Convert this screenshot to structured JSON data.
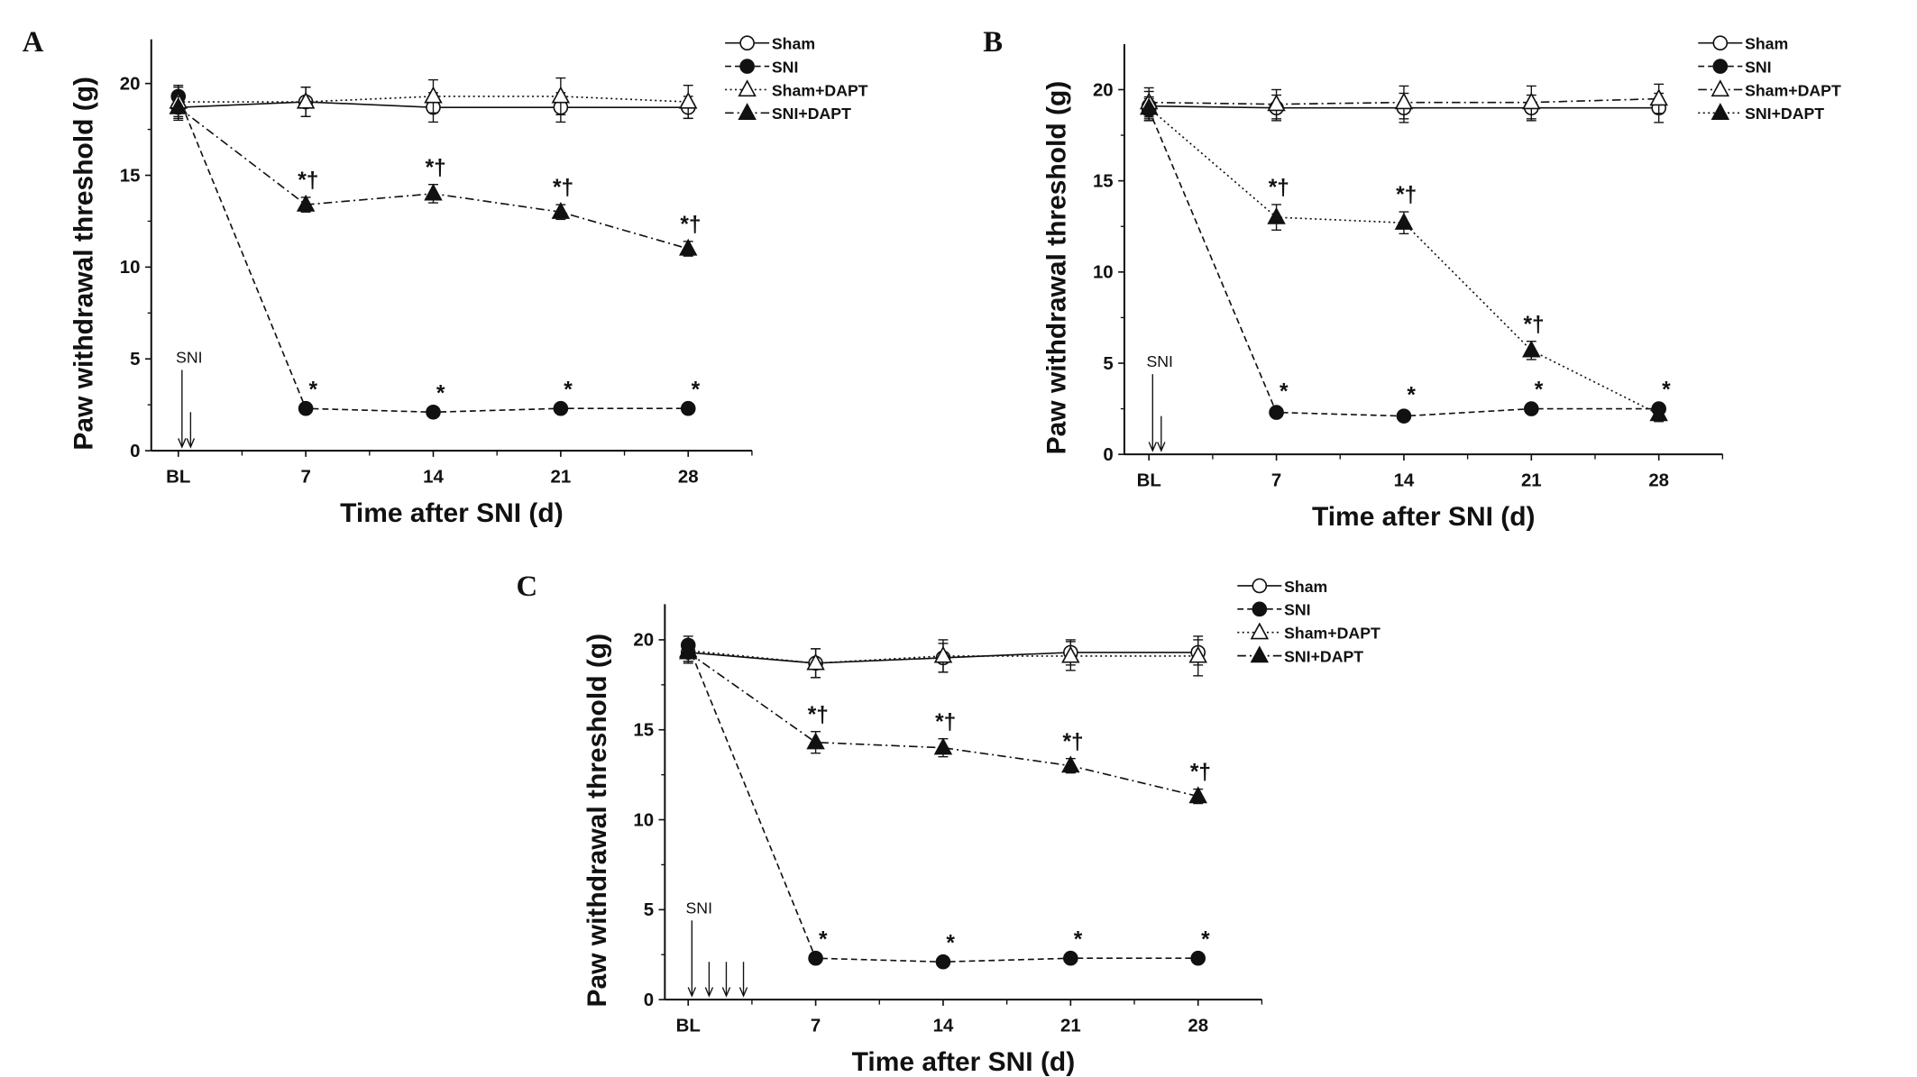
{
  "chart_data": [
    {
      "panel": "A",
      "type": "line",
      "title": "",
      "xlabel": "Time after SNI (d)",
      "ylabel": "Paw withdrawal threshold (g)",
      "categories": [
        "BL",
        "7",
        "14",
        "21",
        "28"
      ],
      "yticks": [
        0,
        5,
        10,
        15,
        20
      ],
      "ylim": [
        0,
        22.5
      ],
      "grid": false,
      "legend": "top-right",
      "arrow_label": "SNI",
      "arrow_count": 2,
      "series": [
        {
          "name": "Sham",
          "marker": "circle-open",
          "line": "solid",
          "values": [
            18.7,
            19.0,
            18.7,
            18.7,
            18.7
          ],
          "errors": [
            0.7,
            0.8,
            0.8,
            0.8,
            0.6
          ],
          "annotations": [
            "",
            "",
            "",
            "",
            ""
          ]
        },
        {
          "name": "SNI",
          "marker": "circle-filled",
          "line": "dashed",
          "values": [
            19.3,
            2.3,
            2.1,
            2.3,
            2.3
          ],
          "errors": [
            0.6,
            0.1,
            0.1,
            0.1,
            0.1
          ],
          "annotations": [
            "",
            "*",
            "*",
            "*",
            "*"
          ]
        },
        {
          "name": "Sham+DAPT",
          "marker": "triangle-open",
          "line": "dotted",
          "values": [
            19.0,
            19.0,
            19.3,
            19.3,
            19.0
          ],
          "errors": [
            0.8,
            0.8,
            0.9,
            1.0,
            0.9
          ],
          "annotations": [
            "",
            "",
            "",
            "",
            ""
          ]
        },
        {
          "name": "SNI+DAPT",
          "marker": "triangle-filled",
          "line": "dashdot",
          "values": [
            18.7,
            13.4,
            14.0,
            13.0,
            11.0
          ],
          "errors": [
            0.6,
            0.4,
            0.5,
            0.4,
            0.4
          ],
          "annotations": [
            "",
            "*†",
            "*†",
            "*†",
            "*†"
          ]
        }
      ]
    },
    {
      "panel": "B",
      "type": "line",
      "title": "",
      "xlabel": "Time after SNI (d)",
      "ylabel": "Paw withdrawal threshold (g)",
      "categories": [
        "BL",
        "7",
        "14",
        "21",
        "28"
      ],
      "yticks": [
        0,
        5,
        10,
        15,
        20
      ],
      "ylim": [
        0,
        22.5
      ],
      "grid": false,
      "legend": "top-right",
      "arrow_label": "SNI",
      "arrow_count": 2,
      "series": [
        {
          "name": "Sham",
          "marker": "circle-open",
          "line": "solid",
          "values": [
            19.1,
            19.0,
            19.0,
            19.0,
            19.0
          ],
          "errors": [
            0.8,
            0.7,
            0.8,
            0.7,
            0.8
          ],
          "annotations": [
            "",
            "",
            "",
            "",
            ""
          ]
        },
        {
          "name": "SNI",
          "marker": "circle-filled",
          "line": "dashed",
          "values": [
            18.9,
            2.3,
            2.1,
            2.5,
            2.5
          ],
          "errors": [
            0.6,
            0.2,
            0.2,
            0.1,
            0.1
          ],
          "annotations": [
            "",
            "*",
            "*",
            "*",
            "*"
          ]
        },
        {
          "name": "Sham+DAPT",
          "marker": "triangle-open",
          "line": "dashdot",
          "values": [
            19.3,
            19.2,
            19.3,
            19.3,
            19.5
          ],
          "errors": [
            0.8,
            0.8,
            0.9,
            0.9,
            0.8
          ],
          "annotations": [
            "",
            "",
            "",
            "",
            ""
          ]
        },
        {
          "name": "SNI+DAPT",
          "marker": "triangle-filled",
          "line": "dotted",
          "values": [
            19.0,
            13.0,
            12.7,
            5.7,
            2.2
          ],
          "errors": [
            0.6,
            0.7,
            0.6,
            0.5,
            0.4
          ],
          "annotations": [
            "",
            "*†",
            "*†",
            "*†",
            ""
          ]
        }
      ]
    },
    {
      "panel": "C",
      "type": "line",
      "title": "",
      "xlabel": "Time after SNI (d)",
      "ylabel": "Paw withdrawal threshold (g)",
      "categories": [
        "BL",
        "7",
        "14",
        "21",
        "28"
      ],
      "yticks": [
        0,
        5,
        10,
        15,
        20
      ],
      "ylim": [
        0,
        22.5
      ],
      "grid": false,
      "legend": "top-right",
      "arrow_label": "SNI",
      "arrow_count": 4,
      "series": [
        {
          "name": "Sham",
          "marker": "circle-open",
          "line": "solid",
          "values": [
            19.3,
            18.7,
            19.0,
            19.3,
            19.3
          ],
          "errors": [
            0.6,
            0.8,
            0.8,
            0.7,
            0.7
          ],
          "annotations": [
            "",
            "",
            "",
            "",
            ""
          ]
        },
        {
          "name": "SNI",
          "marker": "circle-filled",
          "line": "dashed",
          "values": [
            19.7,
            2.3,
            2.1,
            2.3,
            2.3
          ],
          "errors": [
            0.5,
            0.1,
            0.1,
            0.1,
            0.1
          ],
          "annotations": [
            "",
            "*",
            "*",
            "*",
            "*"
          ]
        },
        {
          "name": "Sham+DAPT",
          "marker": "triangle-open",
          "line": "dotted",
          "values": [
            19.4,
            18.7,
            19.1,
            19.1,
            19.1
          ],
          "errors": [
            0.6,
            0.8,
            0.9,
            0.8,
            1.1
          ],
          "annotations": [
            "",
            "",
            "",
            "",
            ""
          ]
        },
        {
          "name": "SNI+DAPT",
          "marker": "triangle-filled",
          "line": "dashdot",
          "values": [
            19.3,
            14.3,
            14.0,
            13.0,
            11.3
          ],
          "errors": [
            0.5,
            0.6,
            0.5,
            0.4,
            0.4
          ],
          "annotations": [
            "",
            "*†",
            "*†",
            "*†",
            "*†"
          ]
        }
      ]
    }
  ]
}
